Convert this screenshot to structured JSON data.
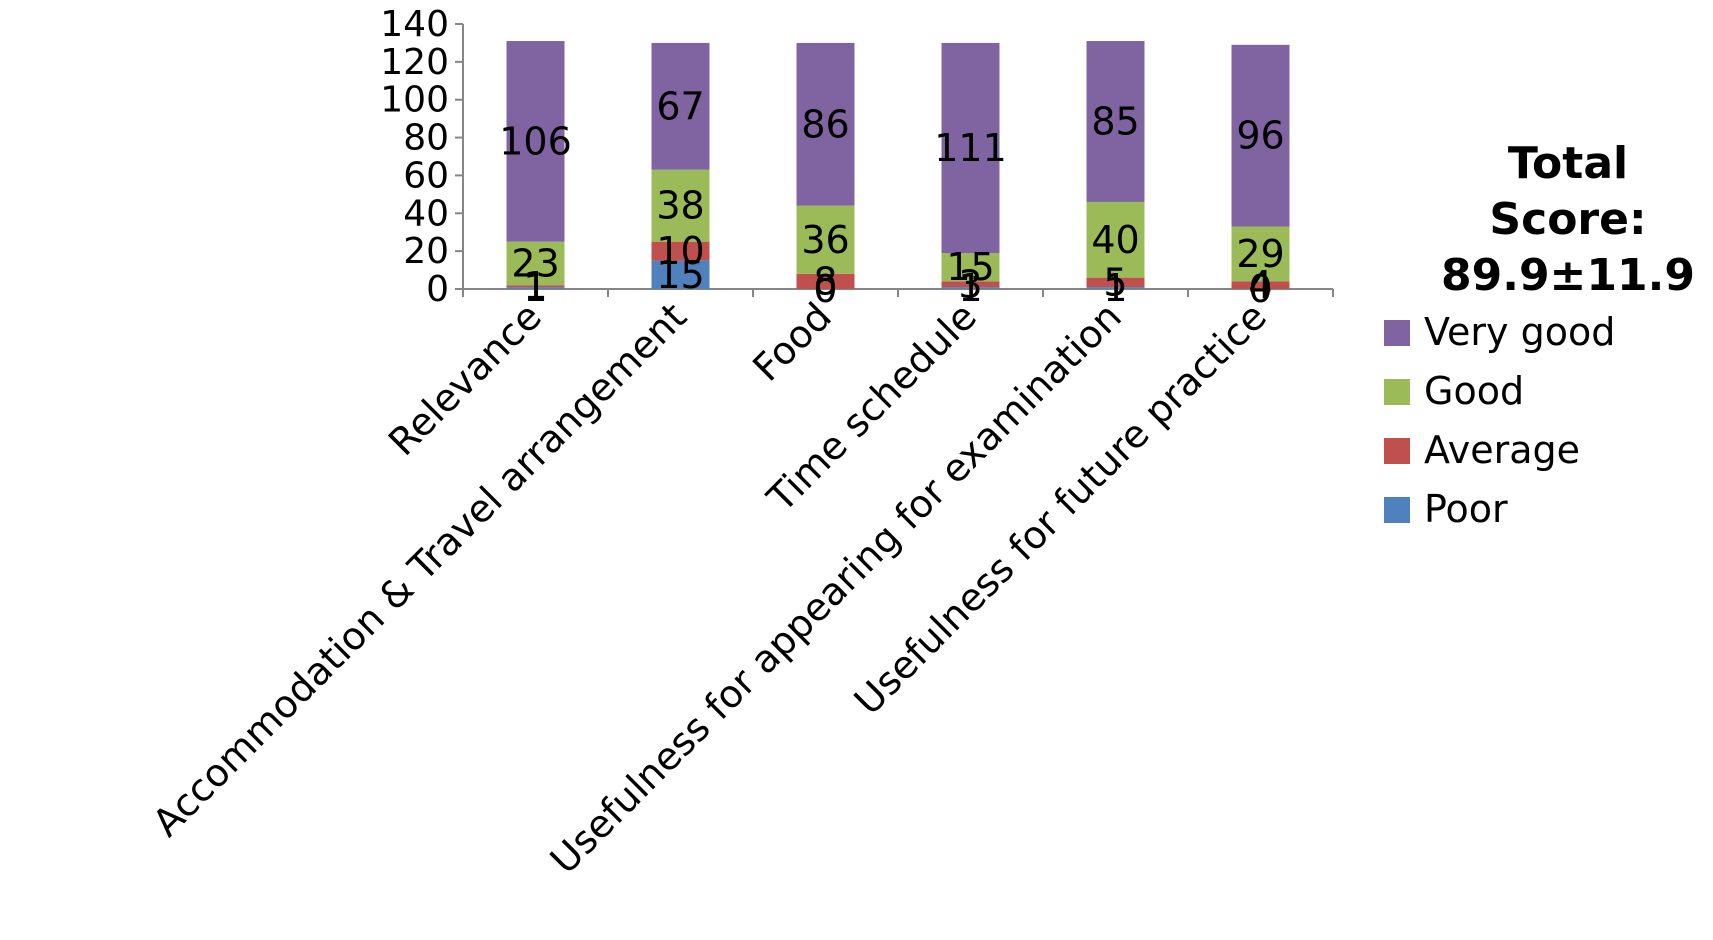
{
  "chart_data": {
    "type": "bar",
    "stacked": true,
    "categories": [
      "Relevance",
      "Accommodation & Travel arrangement",
      "Food",
      "Time schedule",
      "Usefulness for appearing for examination",
      "Usefulness for future practice"
    ],
    "series": [
      {
        "name": "Poor",
        "color": "#4f81bd",
        "values": [
          1,
          15,
          0,
          1,
          1,
          0
        ]
      },
      {
        "name": "Average",
        "color": "#c0504d",
        "values": [
          1,
          10,
          8,
          3,
          5,
          4
        ]
      },
      {
        "name": "Good",
        "color": "#9bbb59",
        "values": [
          23,
          38,
          36,
          15,
          40,
          29
        ]
      },
      {
        "name": "Very good",
        "color": "#8064a2",
        "values": [
          106,
          67,
          86,
          111,
          85,
          96
        ]
      }
    ],
    "yticks": [
      0,
      20,
      40,
      60,
      80,
      100,
      120,
      140
    ],
    "ylim": [
      0,
      140
    ],
    "legend_title": [
      "Total",
      "Score:",
      "89.9±11.9"
    ],
    "legend_order": [
      "Very good",
      "Good",
      "Average",
      "Poor"
    ],
    "legend_position": "right"
  }
}
